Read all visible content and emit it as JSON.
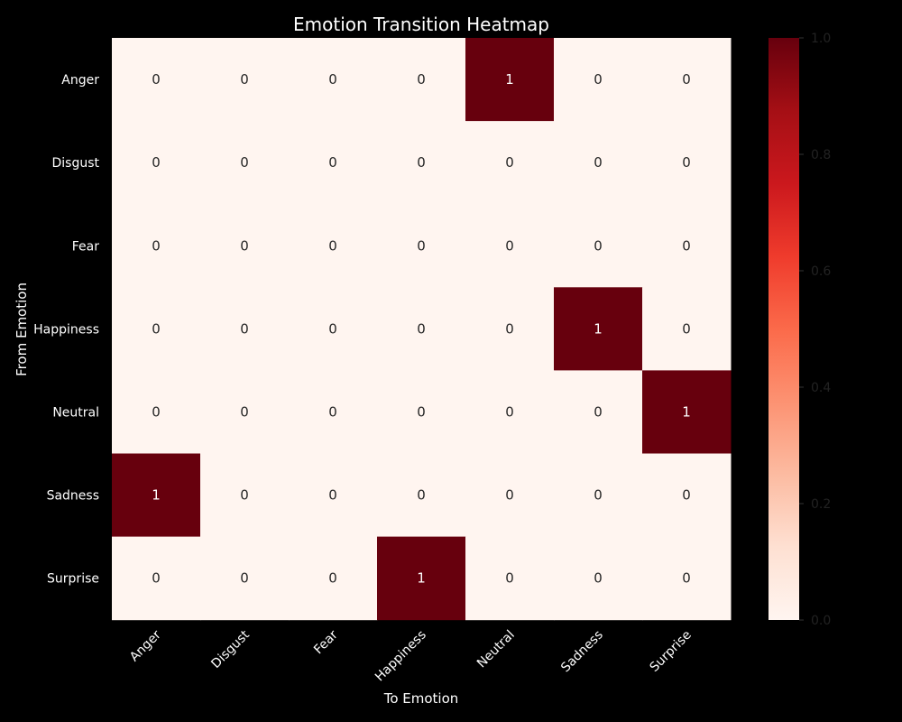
{
  "chart_data": {
    "type": "heatmap",
    "title": "Emotion Transition Heatmap",
    "xlabel": "To Emotion",
    "ylabel": "From Emotion",
    "x_categories": [
      "Anger",
      "Disgust",
      "Fear",
      "Happiness",
      "Neutral",
      "Sadness",
      "Surprise"
    ],
    "y_categories": [
      "Anger",
      "Disgust",
      "Fear",
      "Happiness",
      "Neutral",
      "Sadness",
      "Surprise"
    ],
    "values": [
      [
        0,
        0,
        0,
        0,
        1,
        0,
        0
      ],
      [
        0,
        0,
        0,
        0,
        0,
        0,
        0
      ],
      [
        0,
        0,
        0,
        0,
        0,
        0,
        0
      ],
      [
        0,
        0,
        0,
        0,
        0,
        1,
        0
      ],
      [
        0,
        0,
        0,
        0,
        0,
        0,
        1
      ],
      [
        1,
        0,
        0,
        0,
        0,
        0,
        0
      ],
      [
        0,
        0,
        0,
        1,
        0,
        0,
        0
      ]
    ],
    "colorbar": {
      "min": 0.0,
      "max": 1.0,
      "ticks": [
        "0.0",
        "0.2",
        "0.4",
        "0.6",
        "0.8",
        "1.0"
      ],
      "colormap": "Reds",
      "low_color": "#fff5f0",
      "high_color": "#67000d"
    },
    "annotations": true,
    "background": "#000000"
  }
}
